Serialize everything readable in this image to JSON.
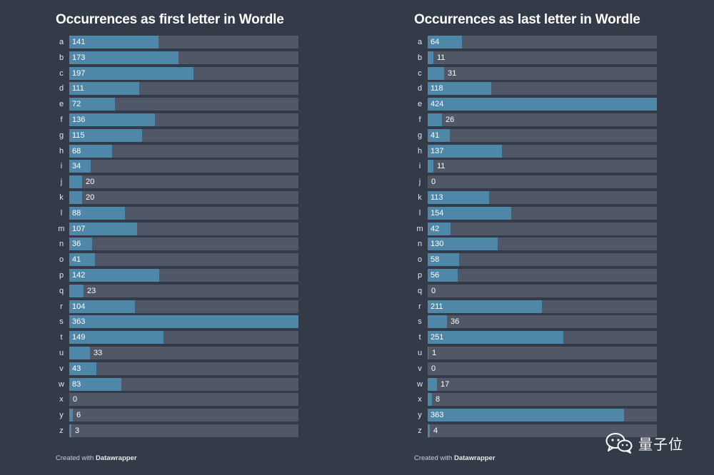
{
  "chart_data": [
    {
      "type": "bar",
      "orientation": "horizontal",
      "title": "Occurrences as first letter in Wordle",
      "categories": [
        "a",
        "b",
        "c",
        "d",
        "e",
        "f",
        "g",
        "h",
        "i",
        "j",
        "k",
        "l",
        "m",
        "n",
        "o",
        "p",
        "q",
        "r",
        "s",
        "t",
        "u",
        "v",
        "w",
        "x",
        "y",
        "z"
      ],
      "values": [
        141,
        173,
        197,
        111,
        72,
        136,
        115,
        68,
        34,
        20,
        20,
        88,
        107,
        36,
        41,
        142,
        23,
        104,
        363,
        149,
        33,
        43,
        83,
        0,
        6,
        3
      ],
      "xlim": [
        0,
        363
      ],
      "credit_prefix": "Created with",
      "credit_brand": "Datawrapper"
    },
    {
      "type": "bar",
      "orientation": "horizontal",
      "title": "Occurrences as last letter in Wordle",
      "categories": [
        "a",
        "b",
        "c",
        "d",
        "e",
        "f",
        "g",
        "h",
        "i",
        "j",
        "k",
        "l",
        "m",
        "n",
        "o",
        "p",
        "q",
        "r",
        "s",
        "t",
        "u",
        "v",
        "w",
        "x",
        "y",
        "z"
      ],
      "values": [
        64,
        11,
        31,
        118,
        424,
        26,
        41,
        137,
        11,
        0,
        113,
        154,
        42,
        130,
        58,
        56,
        0,
        211,
        36,
        251,
        1,
        0,
        17,
        8,
        363,
        4
      ],
      "xlim": [
        0,
        424
      ],
      "credit_prefix": "Created with",
      "credit_brand": "Datawrapper"
    }
  ],
  "colors": {
    "background": "#333a48",
    "track": "#505766",
    "bar": "#4e87a8"
  },
  "watermark": {
    "text": "量子位",
    "icon": "wechat-icon"
  }
}
